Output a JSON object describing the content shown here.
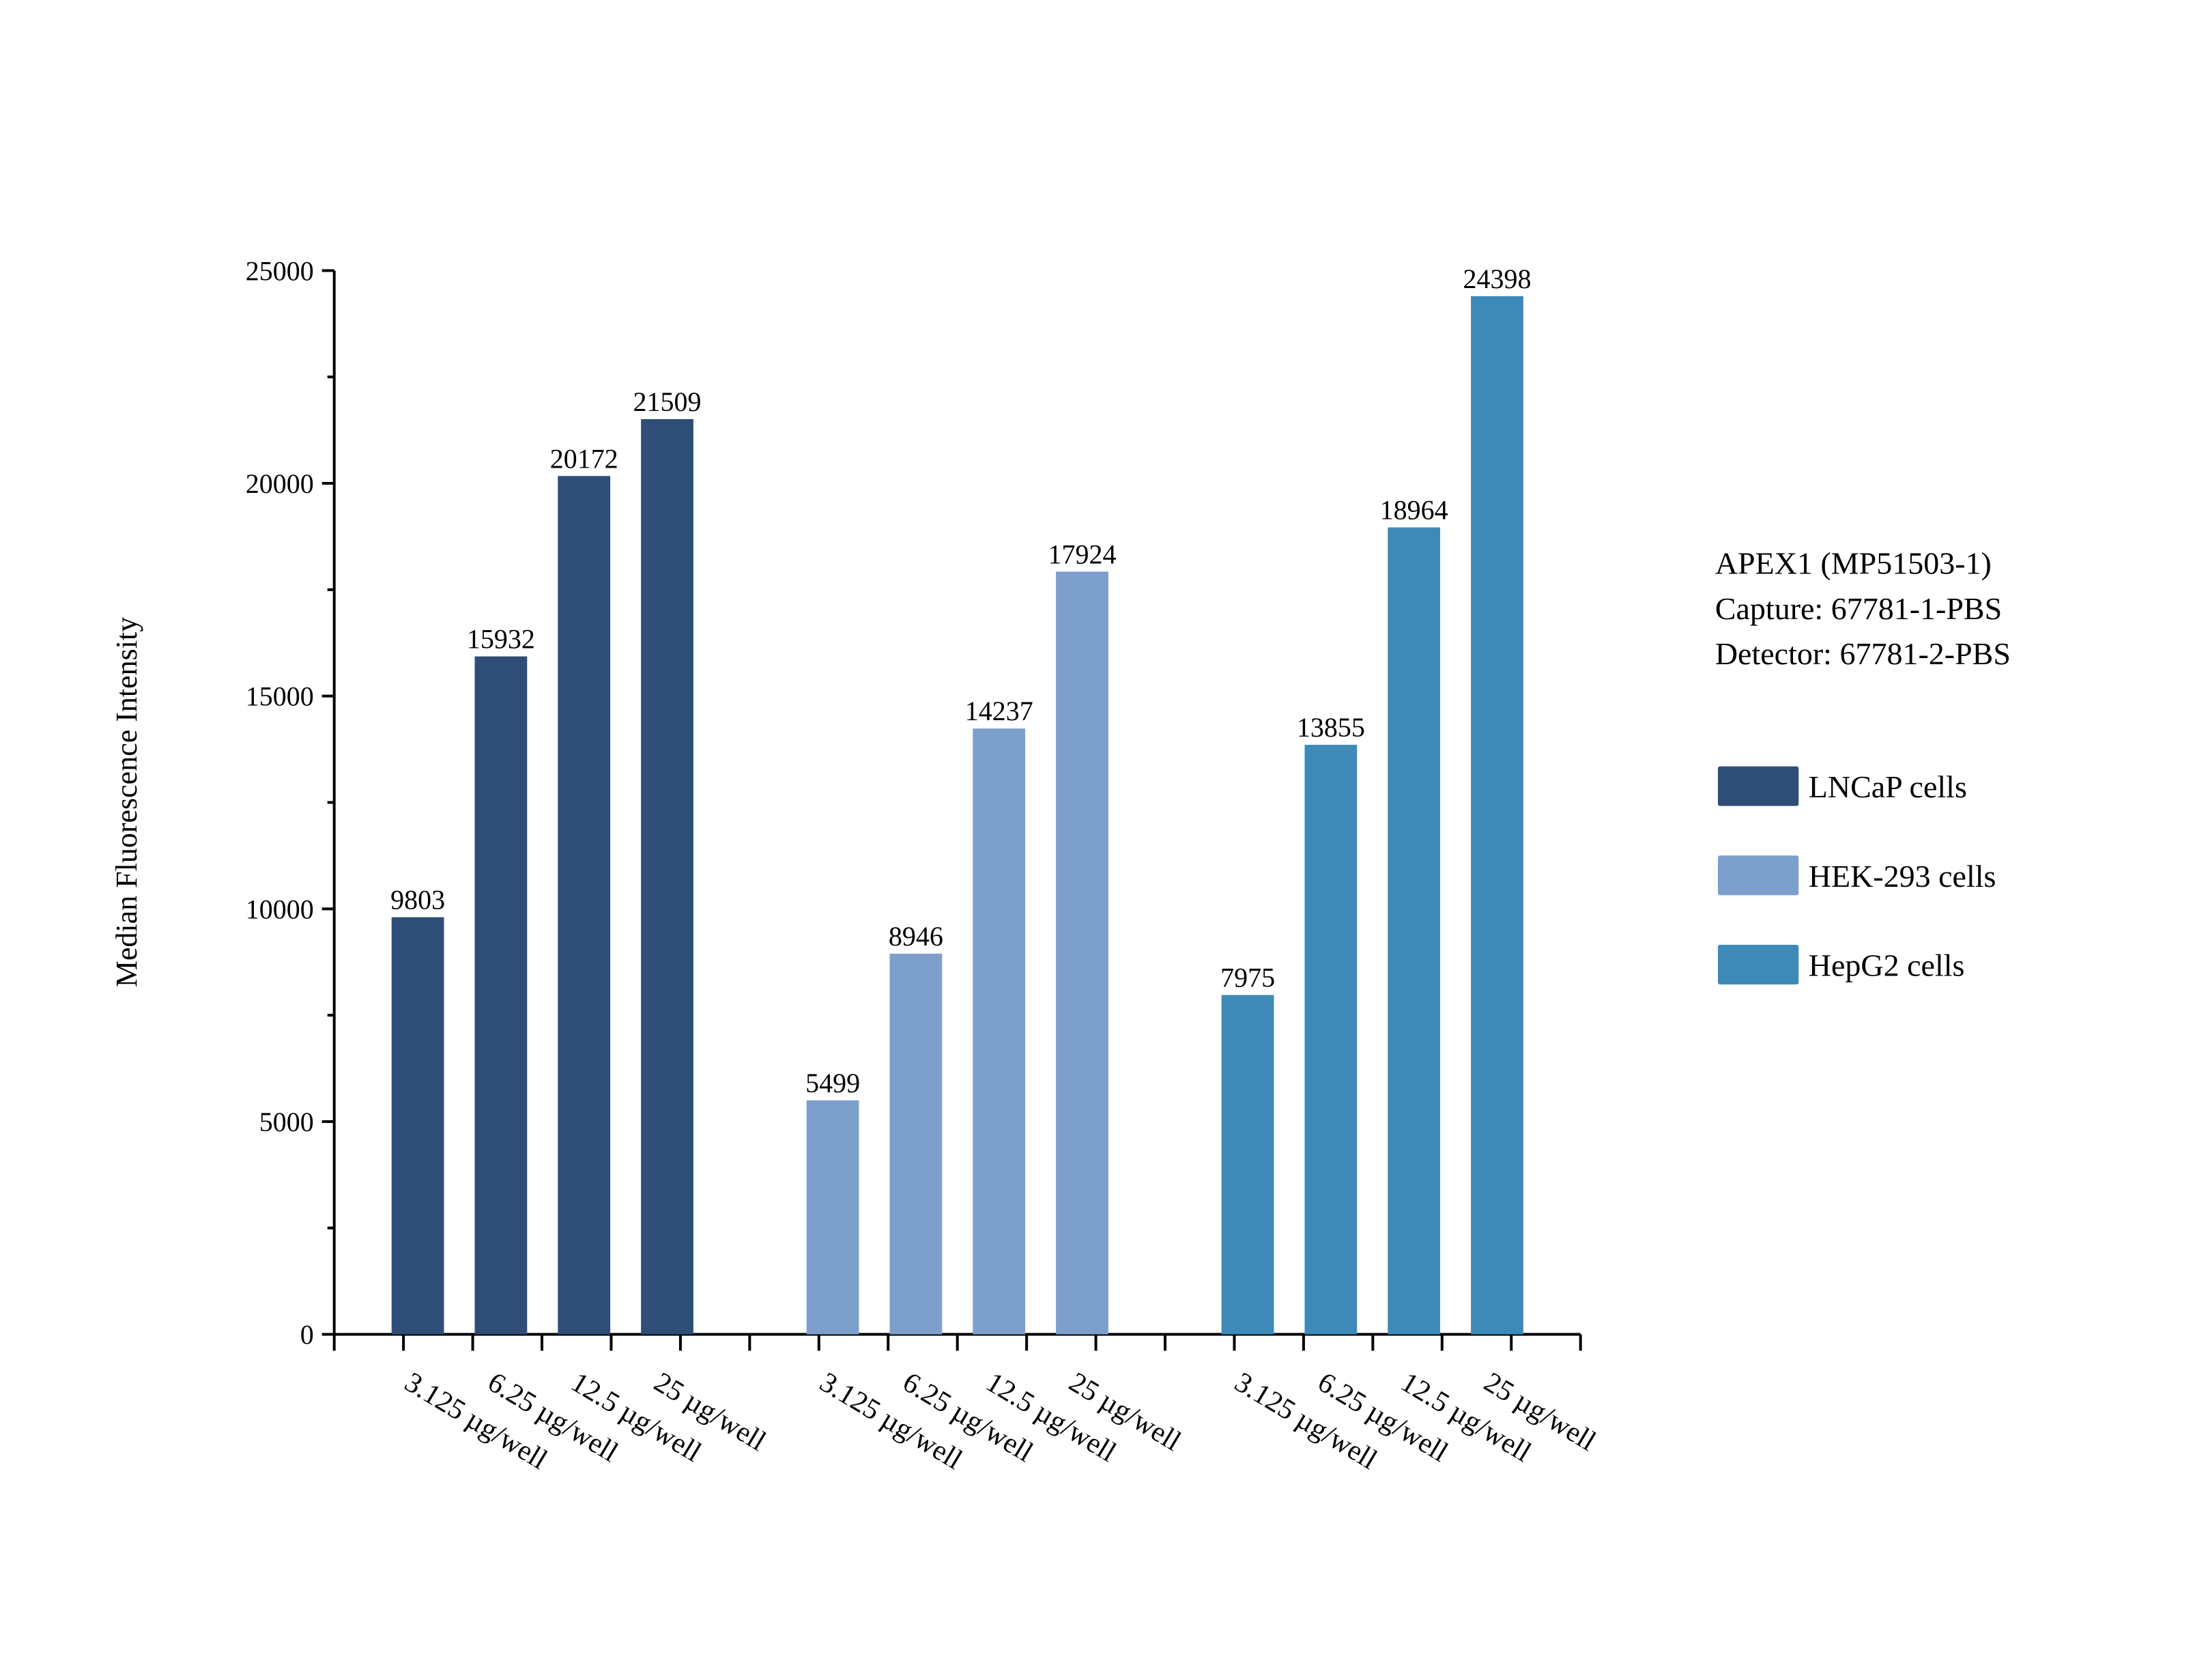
{
  "chart_data": {
    "type": "bar",
    "ylabel": "Median Fluorescence Intensity",
    "xlabel": "",
    "ylim": [
      0,
      25000
    ],
    "yticks": [
      0,
      5000,
      10000,
      15000,
      20000,
      25000
    ],
    "grid": false,
    "legend_placement": "right",
    "annotation": [
      "APEX1 (MP51503-1)",
      "Capture: 67781-1-PBS",
      "Detector: 67781-2-PBS"
    ],
    "categories": [
      "3.125 µg/well",
      "6.25 µg/well",
      "12.5 µg/well",
      "25 µg/well"
    ],
    "series": [
      {
        "name": "LNCaP cells",
        "color": "#2f4e77",
        "values": [
          9803,
          15932,
          20172,
          21509
        ]
      },
      {
        "name": "HEK-293 cells",
        "color": "#7d9fcc",
        "values": [
          5499,
          8946,
          14237,
          17924
        ]
      },
      {
        "name": "HepG2 cells",
        "color": "#3d8ab9",
        "values": [
          7975,
          13855,
          18964,
          24398
        ]
      }
    ]
  }
}
